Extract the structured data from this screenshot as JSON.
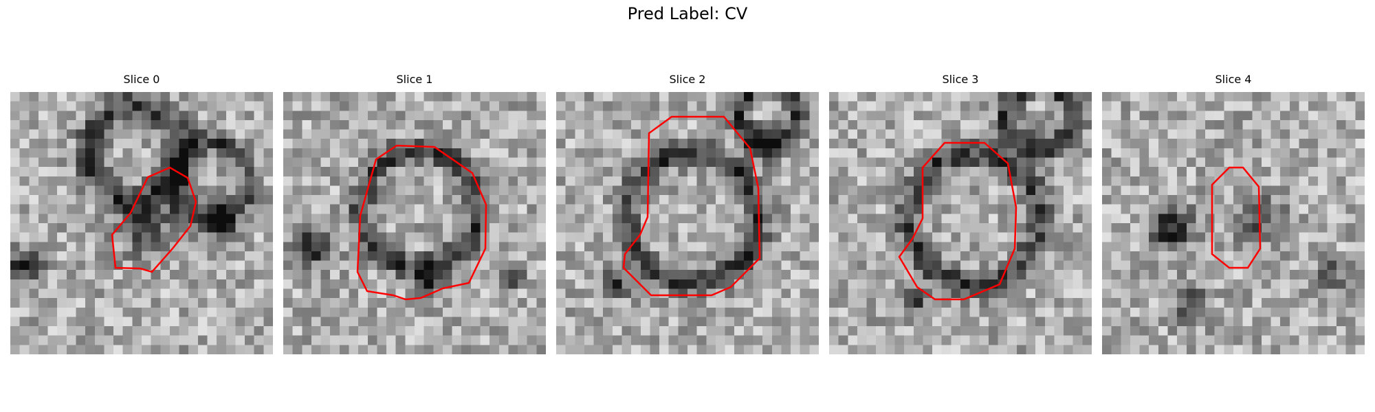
{
  "figure": {
    "title": "Pred Label: CV"
  },
  "contour_color": "#ff0000",
  "colormap": "grayscale",
  "panels": [
    {
      "title": "Slice 0",
      "seed": 11,
      "contour_shape": "small-irregular-blob"
    },
    {
      "title": "Slice 1",
      "seed": 23,
      "contour_shape": "large-round-vesicle"
    },
    {
      "title": "Slice 2",
      "seed": 37,
      "contour_shape": "large-round-vesicle"
    },
    {
      "title": "Slice 3",
      "seed": 51,
      "contour_shape": "large-round-vesicle"
    },
    {
      "title": "Slice 4",
      "seed": 67,
      "contour_shape": "small-elongated-blob"
    }
  ]
}
